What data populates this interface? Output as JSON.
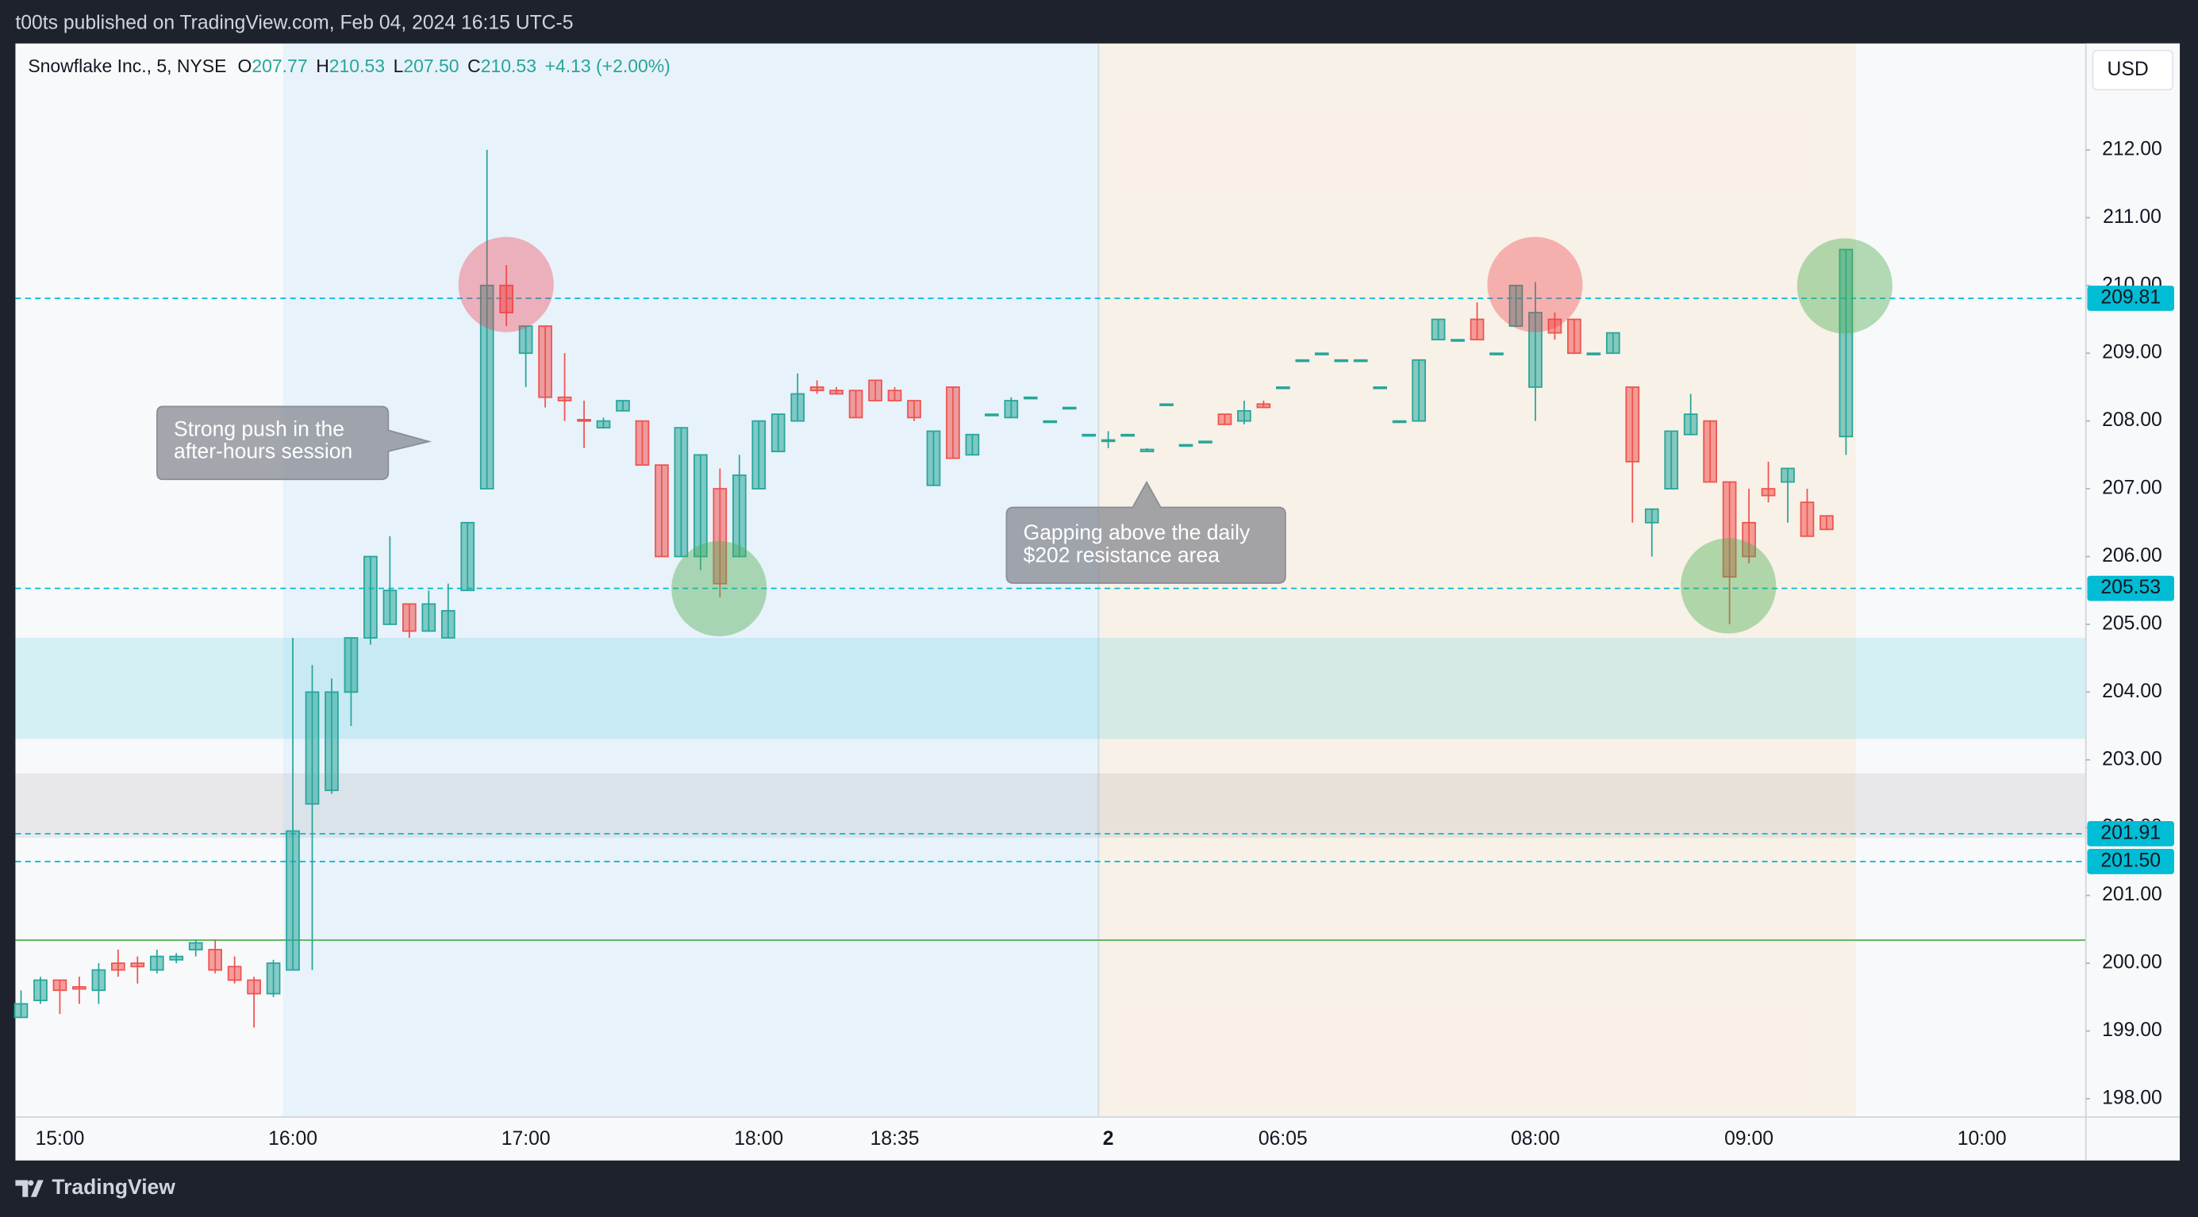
{
  "header": {
    "title": "t00ts published on TradingView.com, Feb 04, 2024 16:15 UTC-5"
  },
  "footer": {
    "brand": "TradingView"
  },
  "chart_data": {
    "type": "candlestick",
    "legend": {
      "symbol": "Snowflake Inc., 5, NYSE",
      "items": [
        {
          "letter": "O",
          "text": "207.77"
        },
        {
          "letter": "H",
          "text": "210.53"
        },
        {
          "letter": "L",
          "text": "207.50"
        },
        {
          "letter": "C",
          "text": "210.53"
        }
      ],
      "change": "+4.13 (+2.00%)"
    },
    "currency": "USD",
    "categories": [
      null,
      null,
      "15:00",
      null,
      null,
      null,
      null,
      null,
      null,
      null,
      null,
      null,
      null,
      null,
      "16:00",
      null,
      null,
      null,
      null,
      null,
      null,
      null,
      null,
      null,
      null,
      null,
      "17:00",
      null,
      null,
      null,
      null,
      null,
      null,
      null,
      null,
      null,
      null,
      null,
      "18:00",
      null,
      null,
      null,
      null,
      null,
      null,
      "18:35",
      null,
      null,
      null,
      null,
      null,
      null,
      null,
      null,
      null,
      null,
      "2",
      null,
      null,
      null,
      null,
      null,
      null,
      null,
      null,
      "06:05",
      null,
      null,
      null,
      null,
      null,
      null,
      null,
      null,
      null,
      null,
      null,
      null,
      "08:00",
      null,
      null,
      null,
      null,
      null,
      null,
      null,
      null,
      null,
      null,
      "09:00",
      null,
      null,
      null,
      null,
      null,
      null,
      null,
      null,
      null,
      null,
      null,
      "10:00",
      null,
      null,
      null,
      null,
      null
    ],
    "open": [
      199.2,
      199.45,
      199.75,
      199.65,
      199.6,
      200.0,
      200.0,
      199.9,
      200.05,
      200.2,
      200.2,
      199.95,
      199.75,
      199.55,
      199.9,
      202.35,
      202.55,
      204.0,
      204.8,
      205.0,
      205.3,
      204.9,
      204.8,
      205.5,
      207.0,
      210.0,
      209.0,
      209.4,
      208.35,
      208.02,
      207.9,
      208.15,
      208.0,
      207.35,
      206.0,
      206.0,
      207.0,
      206.0,
      207.0,
      207.55,
      208.0,
      208.5,
      208.45,
      208.45,
      208.6,
      208.45,
      208.3,
      207.05,
      208.5,
      207.5,
      208.1,
      208.05,
      208.35,
      208.0,
      208.2,
      207.8,
      207.7,
      207.8,
      207.55,
      208.25,
      207.65,
      207.7,
      208.1,
      208.0,
      208.25,
      208.5,
      208.9,
      209.0,
      208.9,
      208.9,
      208.5,
      208.0,
      208.0,
      209.2,
      209.2,
      209.5,
      209.0,
      209.4,
      208.5,
      209.5,
      209.5,
      209.0,
      209.0,
      208.5,
      206.5,
      207.0,
      207.8,
      208.0,
      207.1,
      206.5,
      207.0,
      207.1,
      206.8,
      206.6,
      207.77,
      null,
      null,
      null,
      null,
      null,
      null,
      null,
      null,
      null,
      null,
      null,
      null
    ],
    "high": [
      199.6,
      199.8,
      199.75,
      199.8,
      200.0,
      200.2,
      200.1,
      200.2,
      200.15,
      200.35,
      200.35,
      200.1,
      199.8,
      200.05,
      204.8,
      204.4,
      204.2,
      204.8,
      206.0,
      206.3,
      205.3,
      205.5,
      205.6,
      206.5,
      212.0,
      210.3,
      209.4,
      209.4,
      209.0,
      208.3,
      208.05,
      208.3,
      208.0,
      207.35,
      207.9,
      207.5,
      207.3,
      207.5,
      208.0,
      208.1,
      208.7,
      208.6,
      208.5,
      208.45,
      208.6,
      208.5,
      208.3,
      207.85,
      208.5,
      207.8,
      208.1,
      208.35,
      208.35,
      208.0,
      208.2,
      207.8,
      207.85,
      207.8,
      207.6,
      208.25,
      207.65,
      207.7,
      208.1,
      208.3,
      208.3,
      208.5,
      208.9,
      209.0,
      208.9,
      208.9,
      208.5,
      208.0,
      208.9,
      209.5,
      209.2,
      209.75,
      209.0,
      210.0,
      210.05,
      209.6,
      209.5,
      209.0,
      209.3,
      208.5,
      206.7,
      207.85,
      208.4,
      208.0,
      207.1,
      207.0,
      207.4,
      207.3,
      207.0,
      206.6,
      210.53,
      null,
      null,
      null,
      null,
      null,
      null,
      null,
      null,
      null,
      null,
      null,
      null
    ],
    "low": [
      199.2,
      199.4,
      199.25,
      199.4,
      199.4,
      199.8,
      199.7,
      199.85,
      200.0,
      200.1,
      199.85,
      199.7,
      199.05,
      199.5,
      199.9,
      199.9,
      202.5,
      203.5,
      204.7,
      205.0,
      204.8,
      204.9,
      204.8,
      205.5,
      207.0,
      209.4,
      208.5,
      208.2,
      208.0,
      207.6,
      207.9,
      208.15,
      207.35,
      206.0,
      206.0,
      205.8,
      205.4,
      206.0,
      207.0,
      207.55,
      208.0,
      208.4,
      208.4,
      208.05,
      208.3,
      208.3,
      208.0,
      207.05,
      207.45,
      207.5,
      208.1,
      208.05,
      208.35,
      208.0,
      208.2,
      207.8,
      207.6,
      207.8,
      207.55,
      208.25,
      207.65,
      207.7,
      207.95,
      207.95,
      208.2,
      208.5,
      208.9,
      209.0,
      208.9,
      208.9,
      208.5,
      208.0,
      208.0,
      209.2,
      209.2,
      209.2,
      209.0,
      209.4,
      208.0,
      209.2,
      209.0,
      209.0,
      209.0,
      206.5,
      206.0,
      207.0,
      207.8,
      207.1,
      205.0,
      205.9,
      206.8,
      206.5,
      206.3,
      206.4,
      207.5,
      null,
      null,
      null,
      null,
      null,
      null,
      null,
      null,
      null,
      null,
      null,
      null
    ],
    "close": [
      199.4,
      199.75,
      199.6,
      199.62,
      199.9,
      199.9,
      199.95,
      200.1,
      200.1,
      200.3,
      199.9,
      199.75,
      199.55,
      200.0,
      201.95,
      204.0,
      204.0,
      204.8,
      206.0,
      205.5,
      204.9,
      205.3,
      205.2,
      206.5,
      210.0,
      209.6,
      209.4,
      208.35,
      208.3,
      208.0,
      208.0,
      208.3,
      207.35,
      206.0,
      207.9,
      207.5,
      205.6,
      207.2,
      208.0,
      208.1,
      208.4,
      208.45,
      208.4,
      208.05,
      208.3,
      208.3,
      208.05,
      207.85,
      207.45,
      207.8,
      208.1,
      208.3,
      208.35,
      208.0,
      208.2,
      207.8,
      207.72,
      207.8,
      207.58,
      208.25,
      207.65,
      207.7,
      207.95,
      208.15,
      208.2,
      208.5,
      208.9,
      209.0,
      208.9,
      208.9,
      208.5,
      208.0,
      208.9,
      209.5,
      209.2,
      209.2,
      209.0,
      210.0,
      209.6,
      209.3,
      209.0,
      209.0,
      209.3,
      207.4,
      206.7,
      207.85,
      208.1,
      207.1,
      205.7,
      206.0,
      206.9,
      207.3,
      206.3,
      206.4,
      210.53,
      null,
      null,
      null,
      null,
      null,
      null,
      null,
      null,
      null,
      null,
      null,
      null
    ],
    "up_color": "#26a69a",
    "down_color": "#ef5350",
    "ylim": [
      197.73,
      213.57
    ],
    "yticks": [
      {
        "value": 198,
        "label": "198.00"
      },
      {
        "value": 199,
        "label": "199.00"
      },
      {
        "value": 200,
        "label": "200.00"
      },
      {
        "value": 201,
        "label": "201.00"
      },
      {
        "value": 202,
        "label": "202.00"
      },
      {
        "value": 203,
        "label": "203.00"
      },
      {
        "value": 204,
        "label": "204.00"
      },
      {
        "value": 205,
        "label": "205.00"
      },
      {
        "value": 206,
        "label": "206.00"
      },
      {
        "value": 207,
        "label": "207.00"
      },
      {
        "value": 208,
        "label": "208.00"
      },
      {
        "value": 209,
        "label": "209.00"
      },
      {
        "value": 210,
        "label": "210.00"
      },
      {
        "value": 211,
        "label": "211.00"
      },
      {
        "value": 212,
        "label": "212.00"
      }
    ],
    "price_lines": [
      209.81,
      205.53,
      201.91,
      {
        "value": 201.5,
        "label": "201.50"
      }
    ],
    "level_line": 200.34,
    "zones": [
      [
        203.31,
        204.8
      ],
      [
        201.85,
        202.8
      ]
    ],
    "annotations": [
      {
        "lines": [
          "Strong push in the",
          "after-hours session"
        ]
      },
      {
        "lines": [
          "Gapping above the daily",
          "$202 resistance area"
        ]
      }
    ]
  }
}
